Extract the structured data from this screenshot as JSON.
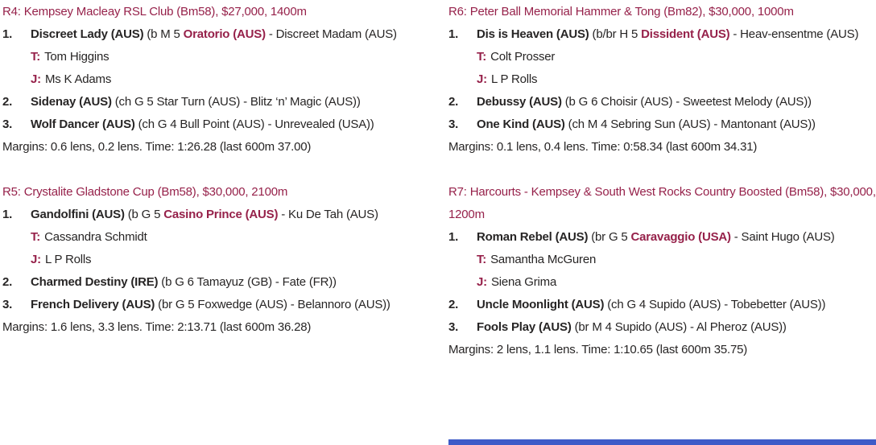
{
  "colors": {
    "accent_maroon": "#96214a",
    "body_text": "#272525",
    "bottom_bar_blue": "#3e5bc8",
    "background": "#ffffff"
  },
  "races": [
    {
      "title": "R4: Kempsey Macleay RSL Club (Bm58), $27,000, 1400m",
      "entries": [
        {
          "pos": "1.",
          "name": "Discreet Lady (AUS)",
          "pre": " (b M 5 ",
          "sire": "Oratorio (AUS)",
          "post": " - Discreet Madam (AUS)",
          "trainer_label": "T:",
          "trainer": "Tom Higgins",
          "jockey_label": "J:",
          "jockey": "Ms K Adams"
        },
        {
          "pos": "2.",
          "name": "Sidenay (AUS)",
          "details": " (ch G 5 Star Turn (AUS) - Blitz ‘n’ Magic (AUS))"
        },
        {
          "pos": "3.",
          "name": "Wolf Dancer (AUS)",
          "details": " (ch G 4 Bull Point (AUS) - Unrevealed (USA))"
        }
      ],
      "margins": "Margins: 0.6 lens, 0.2 lens. Time: 1:26.28 (last 600m 37.00)"
    },
    {
      "title": "R5: Crystalite Gladstone Cup (Bm58), $30,000, 2100m",
      "entries": [
        {
          "pos": "1.",
          "name": "Gandolfini (AUS)",
          "pre": " (b G 5 ",
          "sire": "Casino Prince (AUS)",
          "post": " - Ku De Tah (AUS)",
          "trainer_label": "T:",
          "trainer": "Cassandra Schmidt",
          "jockey_label": "J:",
          "jockey": "L P Rolls"
        },
        {
          "pos": "2.",
          "name": "Charmed Destiny (IRE)",
          "details": " (b G 6 Tamayuz (GB) - Fate (FR))"
        },
        {
          "pos": "3.",
          "name": "French Delivery (AUS)",
          "details": " (br G 5 Foxwedge (AUS) - Belannoro (AUS))"
        }
      ],
      "margins": "Margins: 1.6 lens, 3.3 lens. Time: 2:13.71 (last 600m 36.28)"
    },
    {
      "title": "R6: Peter Ball Memorial Hammer & Tong (Bm82), $30,000, 1000m",
      "entries": [
        {
          "pos": "1.",
          "name": "Dis is Heaven (AUS)",
          "pre": " (b/br H 5 ",
          "sire": "Dissident (AUS)",
          "post": " - Heav-ensentme (AUS)",
          "trainer_label": "T:",
          "trainer": "Colt Prosser",
          "jockey_label": "J:",
          "jockey": "L P Rolls"
        },
        {
          "pos": "2.",
          "name": "Debussy (AUS)",
          "details": " (b G 6 Choisir (AUS) - Sweetest Melody (AUS))"
        },
        {
          "pos": "3.",
          "name": "One Kind (AUS)",
          "details": " (ch M 4 Sebring Sun (AUS) - Mantonant (AUS))"
        }
      ],
      "margins": "Margins: 0.1 lens, 0.4 lens. Time: 0:58.34 (last 600m 34.31)"
    },
    {
      "title": "R7: Harcourts - Kempsey & South West Rocks Country Boosted (Bm58), $30,000, 1200m",
      "entries": [
        {
          "pos": "1.",
          "name": "Roman Rebel (AUS)",
          "pre": " (br G 5 ",
          "sire": "Caravaggio (USA)",
          "post": " - Saint Hugo (AUS)",
          "trainer_label": "T:",
          "trainer": "Samantha McGuren",
          "jockey_label": "J:",
          "jockey": "Siena Grima"
        },
        {
          "pos": "2.",
          "name": "Uncle Moonlight (AUS)",
          "details": " (ch G 4 Supido (AUS) - Tobebetter (AUS))"
        },
        {
          "pos": "3.",
          "name": "Fools Play (AUS)",
          "details": " (br M 4 Supido (AUS) - Al Pheroz (AUS))"
        }
      ],
      "margins": "Margins: 2 lens, 1.1 lens. Time: 1:10.65 (last 600m 35.75)"
    }
  ]
}
